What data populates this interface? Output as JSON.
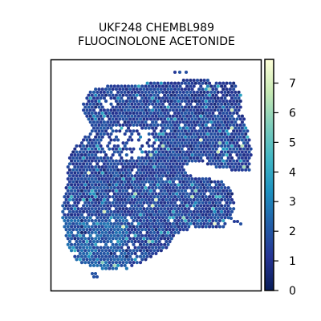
{
  "chart_data": {
    "type": "heatmap",
    "title": [
      "UKF248 CHEMBL989",
      "FLUOCINOLONE ACETONIDE"
    ],
    "colormap": "YlGnBu",
    "color_stops": [
      "#081d58",
      "#253494",
      "#225ea8",
      "#1d91c0",
      "#41b6c4",
      "#7fcdbb",
      "#c7e9b4",
      "#ffffd9"
    ],
    "colorbar": {
      "vmin": 0,
      "vmax": 7.8,
      "ticks": [
        0,
        1,
        2,
        3,
        4,
        5,
        6,
        7
      ],
      "tick_labels": [
        "0",
        "1",
        "2",
        "3",
        "4",
        "5",
        "6",
        "7"
      ]
    },
    "value_summary": {
      "typical_range": [
        1.0,
        2.5
      ],
      "max_observed": 7.5
    },
    "grid": false,
    "axes_visible": false
  }
}
